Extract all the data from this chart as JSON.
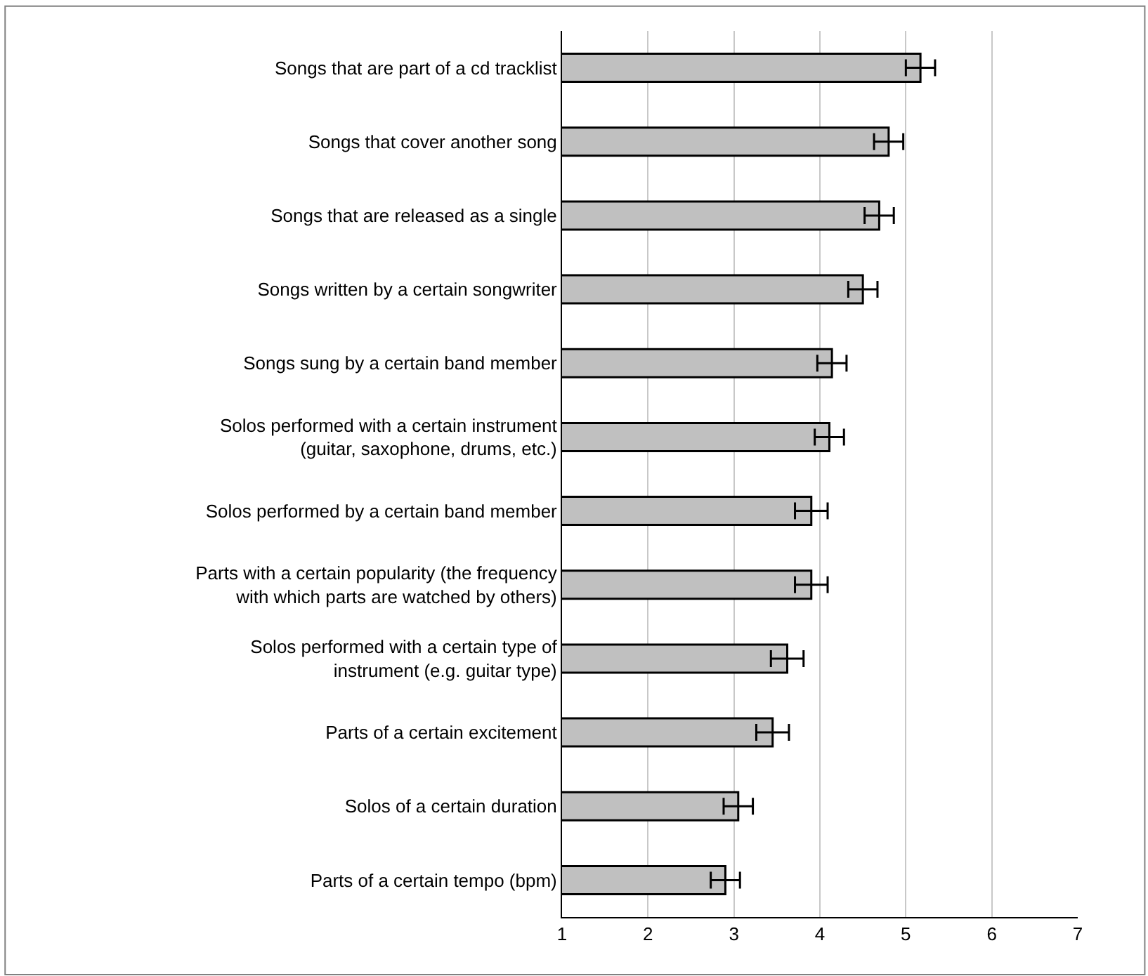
{
  "chart_data": {
    "type": "bar",
    "orientation": "horizontal",
    "categories": [
      "Songs that are part of a cd tracklist",
      "Songs that cover another song",
      "Songs that are released as a single",
      "Songs written by a certain songwriter",
      "Songs sung by a certain band member",
      "Solos performed with a certain instrument\n(guitar, saxophone, drums, etc.)",
      "Solos performed by a certain band member",
      "Parts with a certain popularity (the frequency\nwith which parts are watched by others)",
      "Solos performed with a certain type of\ninstrument (e.g. guitar type)",
      "Parts of a certain excitement",
      "Solos of a certain duration",
      "Parts of a certain tempo (bpm)"
    ],
    "values": [
      5.17,
      4.8,
      4.69,
      4.5,
      4.14,
      4.11,
      3.9,
      3.9,
      3.62,
      3.45,
      3.05,
      2.9
    ],
    "errors": [
      0.17,
      0.17,
      0.17,
      0.17,
      0.17,
      0.17,
      0.19,
      0.19,
      0.19,
      0.19,
      0.17,
      0.17
    ],
    "color": "#c0c0c0",
    "xlim": [
      1,
      7
    ],
    "xticks": [
      1,
      2,
      3,
      4,
      5,
      6,
      7
    ],
    "grid": "x",
    "legend": false
  }
}
